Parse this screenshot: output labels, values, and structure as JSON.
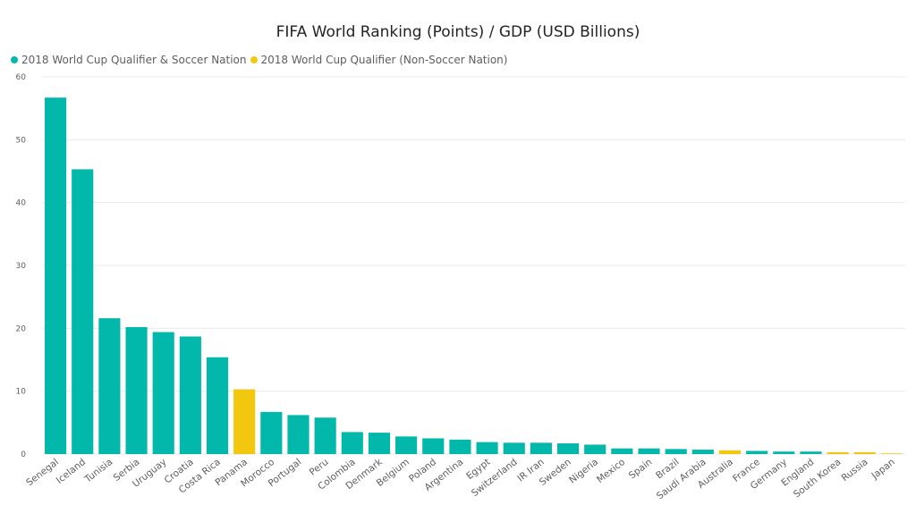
{
  "chart_data": {
    "type": "bar",
    "title": "FIFA World Ranking (Points) / GDP (USD Billions)",
    "xlabel": "",
    "ylabel": "",
    "ylim": [
      0,
      60
    ],
    "yticks": [
      0,
      10,
      20,
      30,
      40,
      50,
      60
    ],
    "grid": true,
    "legend_position": "top-left",
    "legend": [
      {
        "name": "2018 World Cup Qualifier & Soccer Nation",
        "color": "#01B8AA"
      },
      {
        "name": "2018 World Cup Qualifier (Non-Soccer Nation)",
        "color": "#F2C80F"
      }
    ],
    "categories": [
      "Senegal",
      "Iceland",
      "Tunisia",
      "Serbia",
      "Uruguay",
      "Croatia",
      "Costa Rica",
      "Panama",
      "Morocco",
      "Portugal",
      "Peru",
      "Colombia",
      "Denmark",
      "Belgium",
      "Poland",
      "Argentina",
      "Egypt",
      "Switzerland",
      "IR Iran",
      "Sweden",
      "Nigeria",
      "Mexico",
      "Spain",
      "Brazil",
      "Saudi Arabia",
      "Australia",
      "France",
      "Germany",
      "England",
      "South Korea",
      "Russia",
      "Japan"
    ],
    "values": [
      56.7,
      45.3,
      21.6,
      20.2,
      19.4,
      18.7,
      15.4,
      10.3,
      6.7,
      6.2,
      5.8,
      3.5,
      3.4,
      2.8,
      2.5,
      2.3,
      1.9,
      1.8,
      1.8,
      1.7,
      1.5,
      0.9,
      0.9,
      0.8,
      0.7,
      0.6,
      0.5,
      0.4,
      0.4,
      0.3,
      0.3,
      0.1
    ],
    "groups": [
      0,
      0,
      0,
      0,
      0,
      0,
      0,
      1,
      0,
      0,
      0,
      0,
      0,
      0,
      0,
      0,
      0,
      0,
      0,
      0,
      0,
      0,
      0,
      0,
      0,
      1,
      0,
      0,
      0,
      1,
      1,
      1
    ]
  }
}
